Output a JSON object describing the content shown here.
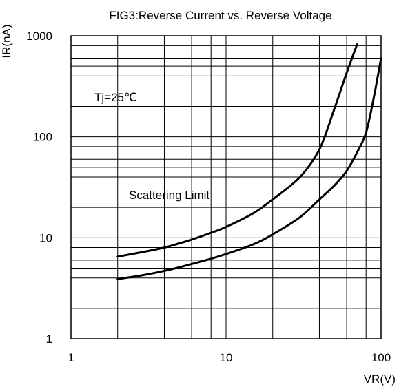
{
  "chart_data": {
    "type": "line",
    "title": "FIG3:Reverse Current vs. Reverse Voltage",
    "xlabel": "VR(V)",
    "ylabel": "IR(nA)",
    "x_scale": "log",
    "y_scale": "log",
    "xlim": [
      1,
      100
    ],
    "ylim": [
      1,
      1000
    ],
    "x_ticks": [
      "1",
      "10",
      "100"
    ],
    "y_ticks": [
      "1000",
      "100",
      "10",
      "1"
    ],
    "grid": true,
    "annotations": [
      "Tj=25℃",
      "Scattering Limit"
    ],
    "series": [
      {
        "x": [
          2,
          3,
          4,
          5,
          6,
          8,
          10,
          15,
          20,
          30,
          40,
          50,
          60,
          70
        ],
        "y": [
          6.5,
          7.3,
          8.0,
          8.8,
          9.6,
          11.2,
          12.8,
          17.5,
          24,
          40,
          75,
          190,
          430,
          820
        ]
      },
      {
        "x": [
          2,
          3,
          4,
          5,
          6,
          8,
          10,
          15,
          20,
          30,
          40,
          50,
          60,
          70,
          80,
          90,
          100
        ],
        "y": [
          3.9,
          4.3,
          4.7,
          5.1,
          5.5,
          6.2,
          6.9,
          8.6,
          10.8,
          16,
          24,
          33,
          46,
          70,
          110,
          250,
          600
        ]
      }
    ]
  }
}
